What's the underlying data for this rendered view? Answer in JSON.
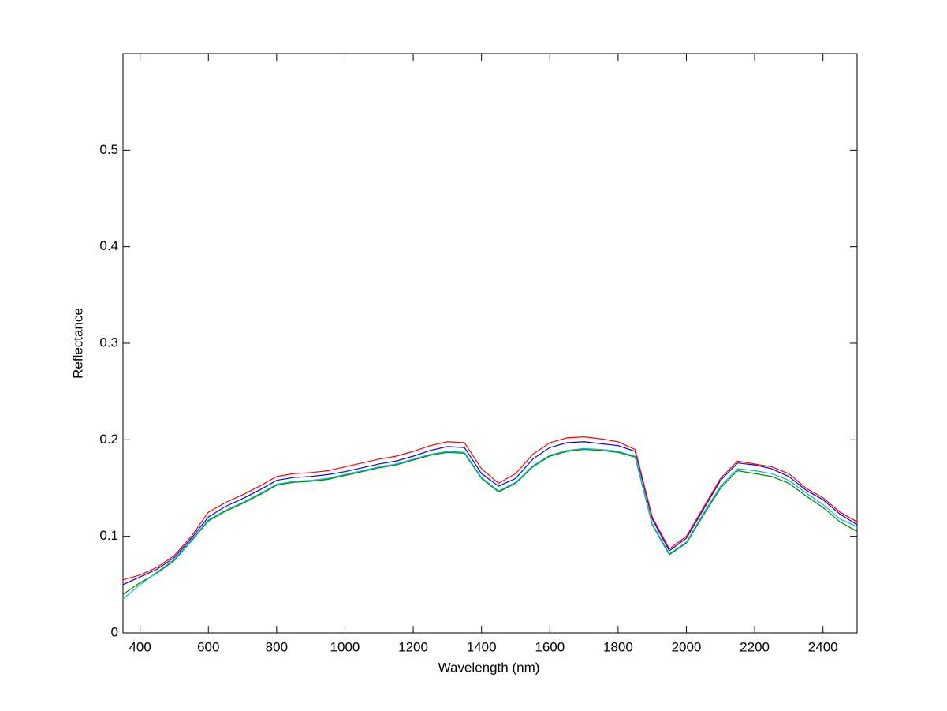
{
  "chart_data": {
    "type": "line",
    "xlabel": "Wavelength (nm)",
    "ylabel": "Reflectance",
    "x": [
      350,
      400,
      450,
      500,
      550,
      600,
      650,
      700,
      750,
      800,
      850,
      900,
      950,
      1000,
      1050,
      1100,
      1150,
      1200,
      1250,
      1300,
      1350,
      1400,
      1450,
      1500,
      1550,
      1600,
      1650,
      1700,
      1750,
      1800,
      1850,
      1900,
      1950,
      2000,
      2050,
      2100,
      2150,
      2200,
      2250,
      2300,
      2350,
      2400,
      2450,
      2500
    ],
    "series": [
      {
        "color": "#008000",
        "values": [
          0.04,
          0.052,
          0.062,
          0.075,
          0.095,
          0.116,
          0.126,
          0.134,
          0.143,
          0.153,
          0.156,
          0.157,
          0.159,
          0.163,
          0.167,
          0.171,
          0.174,
          0.179,
          0.184,
          0.187,
          0.186,
          0.16,
          0.146,
          0.155,
          0.172,
          0.183,
          0.188,
          0.19,
          0.189,
          0.187,
          0.182,
          0.112,
          0.081,
          0.093,
          0.122,
          0.15,
          0.168,
          0.165,
          0.162,
          0.155,
          0.142,
          0.13,
          0.115,
          0.105
        ]
      },
      {
        "color": "#00bfbf",
        "values": [
          0.035,
          0.05,
          0.063,
          0.076,
          0.096,
          0.117,
          0.127,
          0.135,
          0.144,
          0.154,
          0.157,
          0.158,
          0.16,
          0.164,
          0.168,
          0.172,
          0.175,
          0.18,
          0.185,
          0.188,
          0.187,
          0.161,
          0.147,
          0.156,
          0.173,
          0.184,
          0.189,
          0.191,
          0.19,
          0.188,
          0.183,
          0.113,
          0.082,
          0.094,
          0.124,
          0.152,
          0.17,
          0.168,
          0.165,
          0.158,
          0.145,
          0.133,
          0.118,
          0.11
        ]
      },
      {
        "color": "#0000ff",
        "values": [
          0.05,
          0.058,
          0.066,
          0.078,
          0.098,
          0.12,
          0.131,
          0.139,
          0.148,
          0.158,
          0.161,
          0.162,
          0.164,
          0.167,
          0.171,
          0.175,
          0.178,
          0.183,
          0.189,
          0.193,
          0.192,
          0.165,
          0.152,
          0.16,
          0.18,
          0.192,
          0.197,
          0.198,
          0.196,
          0.194,
          0.188,
          0.118,
          0.085,
          0.098,
          0.128,
          0.158,
          0.176,
          0.174,
          0.17,
          0.162,
          0.148,
          0.138,
          0.123,
          0.112
        ]
      },
      {
        "color": "#ff0000",
        "values": [
          0.055,
          0.06,
          0.068,
          0.08,
          0.1,
          0.125,
          0.135,
          0.143,
          0.152,
          0.162,
          0.165,
          0.166,
          0.168,
          0.172,
          0.176,
          0.18,
          0.183,
          0.188,
          0.194,
          0.198,
          0.197,
          0.17,
          0.155,
          0.165,
          0.185,
          0.197,
          0.202,
          0.203,
          0.201,
          0.198,
          0.19,
          0.12,
          0.087,
          0.1,
          0.13,
          0.16,
          0.178,
          0.175,
          0.172,
          0.165,
          0.15,
          0.14,
          0.125,
          0.115
        ]
      }
    ],
    "xlim": [
      350,
      2500
    ],
    "xticks": [
      400,
      600,
      800,
      1000,
      1200,
      1400,
      1600,
      1800,
      2000,
      2200,
      2400
    ],
    "ylim": [
      0,
      0.6
    ],
    "yticks": [
      0,
      0.1,
      0.2,
      0.3,
      0.4,
      0.5
    ],
    "grid": false
  }
}
